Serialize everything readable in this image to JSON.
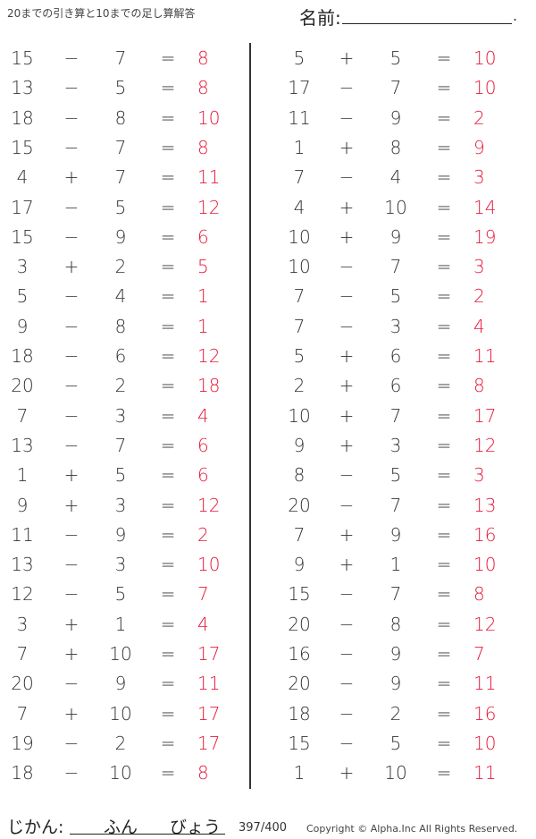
{
  "header": {
    "title": "20までの引き算と10までの足し算解答",
    "name_label": "名前:",
    "name_end": "."
  },
  "footer": {
    "time_label": "じかん:",
    "minutes": "ふん",
    "seconds": "びょう",
    "score": "397/400",
    "copyright": "Copyright ©  Alpha.Inc All Rights Reserved."
  },
  "colors": {
    "answer": "#e8173a",
    "text": "#333333"
  },
  "left": [
    [
      "15",
      "−",
      "7",
      "=",
      "8"
    ],
    [
      "13",
      "−",
      "5",
      "=",
      "8"
    ],
    [
      "18",
      "−",
      "8",
      "=",
      "10"
    ],
    [
      "15",
      "−",
      "7",
      "=",
      "8"
    ],
    [
      "4",
      "+",
      "7",
      "=",
      "11"
    ],
    [
      "17",
      "−",
      "5",
      "=",
      "12"
    ],
    [
      "15",
      "−",
      "9",
      "=",
      "6"
    ],
    [
      "3",
      "+",
      "2",
      "=",
      "5"
    ],
    [
      "5",
      "−",
      "4",
      "=",
      "1"
    ],
    [
      "9",
      "−",
      "8",
      "=",
      "1"
    ],
    [
      "18",
      "−",
      "6",
      "=",
      "12"
    ],
    [
      "20",
      "−",
      "2",
      "=",
      "18"
    ],
    [
      "7",
      "−",
      "3",
      "=",
      "4"
    ],
    [
      "13",
      "−",
      "7",
      "=",
      "6"
    ],
    [
      "1",
      "+",
      "5",
      "=",
      "6"
    ],
    [
      "9",
      "+",
      "3",
      "=",
      "12"
    ],
    [
      "11",
      "−",
      "9",
      "=",
      "2"
    ],
    [
      "13",
      "−",
      "3",
      "=",
      "10"
    ],
    [
      "12",
      "−",
      "5",
      "=",
      "7"
    ],
    [
      "3",
      "+",
      "1",
      "=",
      "4"
    ],
    [
      "7",
      "+",
      "10",
      "=",
      "17"
    ],
    [
      "20",
      "−",
      "9",
      "=",
      "11"
    ],
    [
      "7",
      "+",
      "10",
      "=",
      "17"
    ],
    [
      "19",
      "−",
      "2",
      "=",
      "17"
    ],
    [
      "18",
      "−",
      "10",
      "=",
      "8"
    ]
  ],
  "right": [
    [
      "5",
      "+",
      "5",
      "=",
      "10"
    ],
    [
      "17",
      "−",
      "7",
      "=",
      "10"
    ],
    [
      "11",
      "−",
      "9",
      "=",
      "2"
    ],
    [
      "1",
      "+",
      "8",
      "=",
      "9"
    ],
    [
      "7",
      "−",
      "4",
      "=",
      "3"
    ],
    [
      "4",
      "+",
      "10",
      "=",
      "14"
    ],
    [
      "10",
      "+",
      "9",
      "=",
      "19"
    ],
    [
      "10",
      "−",
      "7",
      "=",
      "3"
    ],
    [
      "7",
      "−",
      "5",
      "=",
      "2"
    ],
    [
      "7",
      "−",
      "3",
      "=",
      "4"
    ],
    [
      "5",
      "+",
      "6",
      "=",
      "11"
    ],
    [
      "2",
      "+",
      "6",
      "=",
      "8"
    ],
    [
      "10",
      "+",
      "7",
      "=",
      "17"
    ],
    [
      "9",
      "+",
      "3",
      "=",
      "12"
    ],
    [
      "8",
      "−",
      "5",
      "=",
      "3"
    ],
    [
      "20",
      "−",
      "7",
      "=",
      "13"
    ],
    [
      "7",
      "+",
      "9",
      "=",
      "16"
    ],
    [
      "9",
      "+",
      "1",
      "=",
      "10"
    ],
    [
      "15",
      "−",
      "7",
      "=",
      "8"
    ],
    [
      "20",
      "−",
      "8",
      "=",
      "12"
    ],
    [
      "16",
      "−",
      "9",
      "=",
      "7"
    ],
    [
      "20",
      "−",
      "9",
      "=",
      "11"
    ],
    [
      "18",
      "−",
      "2",
      "=",
      "16"
    ],
    [
      "15",
      "−",
      "5",
      "=",
      "10"
    ],
    [
      "1",
      "+",
      "10",
      "=",
      "11"
    ]
  ]
}
